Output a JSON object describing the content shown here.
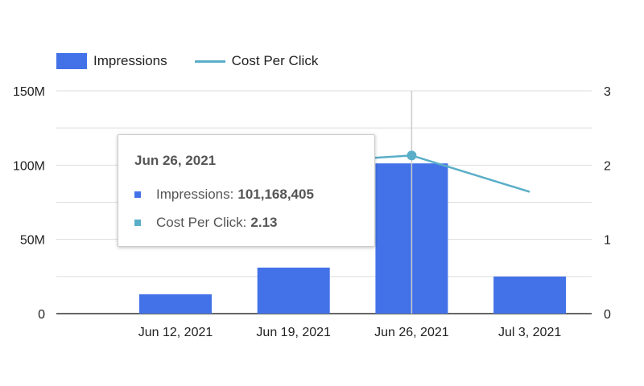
{
  "chart_data": {
    "type": "bar+line",
    "categories": [
      "Jun 12, 2021",
      "Jun 19, 2021",
      "Jun 26, 2021",
      "Jul 3, 2021"
    ],
    "series": [
      {
        "name": "Impressions",
        "type": "bar",
        "axis": "left",
        "color": "#4372e8",
        "values": [
          13000000,
          31000000,
          101168405,
          25000000
        ]
      },
      {
        "name": "Cost Per Click",
        "type": "line",
        "axis": "right",
        "color": "#5aaec8",
        "values": [
          1.95,
          2.03,
          2.13,
          1.64
        ]
      }
    ],
    "left_axis": {
      "ticks": [
        "0",
        "50M",
        "100M",
        "150M"
      ],
      "ylim": [
        0,
        150000000
      ]
    },
    "right_axis": {
      "ticks": [
        "0",
        "1",
        "2",
        "3"
      ],
      "ylim": [
        0,
        3
      ]
    },
    "legend": {
      "position": "top-left",
      "items": [
        "Impressions",
        "Cost Per Click"
      ]
    },
    "grid": true
  },
  "tooltip": {
    "title": "Jun 26, 2021",
    "impressions_label": "Impressions:",
    "impressions_value": "101,168,405",
    "cpc_label": "Cost Per Click:",
    "cpc_value": "2.13"
  }
}
